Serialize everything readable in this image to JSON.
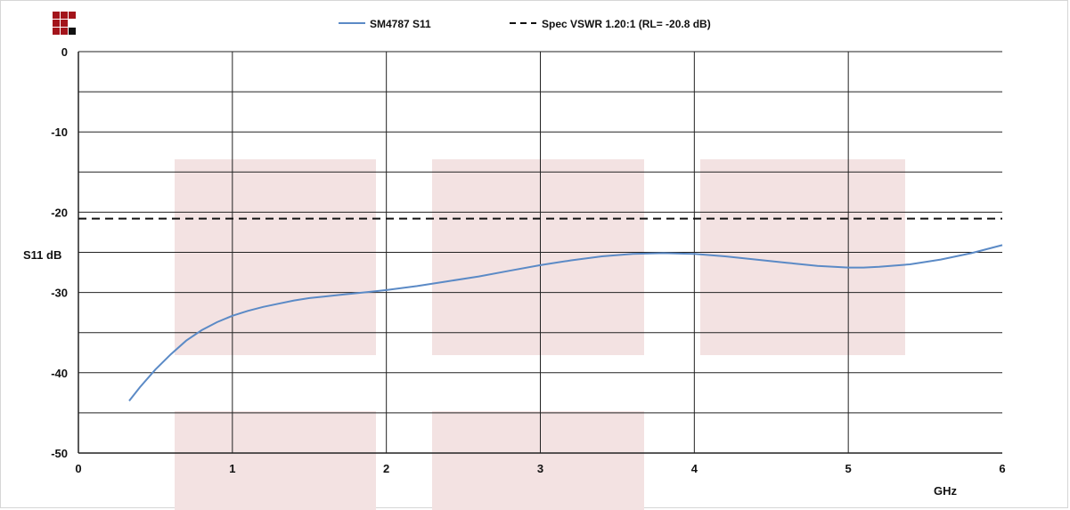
{
  "colors": {
    "series": "#5b8ac6",
    "spec": "#111111",
    "watermark": "#f3e2e2",
    "logo_red": "#a3141b",
    "logo_dark": "#111111",
    "grid": "#222222"
  },
  "logo": {
    "icon": "brand-logo-icon"
  },
  "chart_data": {
    "type": "line",
    "xlabel": "GHz",
    "ylabel": "S11 dB",
    "xlim": [
      0,
      6
    ],
    "ylim": [
      -50,
      0
    ],
    "x_ticks": [
      "0",
      "1",
      "2",
      "3",
      "4",
      "5",
      "6"
    ],
    "y_ticks": [
      "0",
      "-10",
      "-20",
      "-30",
      "-40",
      "-50"
    ],
    "y_minor_step": 5,
    "grid": true,
    "legend_position": "top-center",
    "series": [
      {
        "name": "SM4787 S11",
        "style": "solid",
        "x": [
          0.33,
          0.4,
          0.5,
          0.6,
          0.7,
          0.8,
          0.9,
          1.0,
          1.1,
          1.2,
          1.3,
          1.4,
          1.5,
          1.6,
          1.7,
          1.8,
          1.9,
          2.0,
          2.2,
          2.4,
          2.6,
          2.8,
          3.0,
          3.2,
          3.4,
          3.6,
          3.8,
          4.0,
          4.2,
          4.4,
          4.6,
          4.8,
          5.0,
          5.1,
          5.2,
          5.4,
          5.6,
          5.8,
          6.0
        ],
        "y": [
          -43.5,
          -41.8,
          -39.6,
          -37.7,
          -36.0,
          -34.7,
          -33.7,
          -32.9,
          -32.3,
          -31.8,
          -31.4,
          -31.0,
          -30.7,
          -30.5,
          -30.3,
          -30.1,
          -29.9,
          -29.7,
          -29.2,
          -28.6,
          -28.0,
          -27.3,
          -26.6,
          -26.0,
          -25.5,
          -25.2,
          -25.1,
          -25.2,
          -25.5,
          -25.9,
          -26.3,
          -26.7,
          -26.9,
          -26.9,
          -26.8,
          -26.5,
          -25.9,
          -25.1,
          -24.1
        ]
      },
      {
        "name": "Spec VSWR 1.20:1 (RL= -20.8 dB)",
        "style": "dashed",
        "x": [
          0,
          6
        ],
        "y": [
          -20.8,
          -20.8
        ]
      }
    ]
  }
}
